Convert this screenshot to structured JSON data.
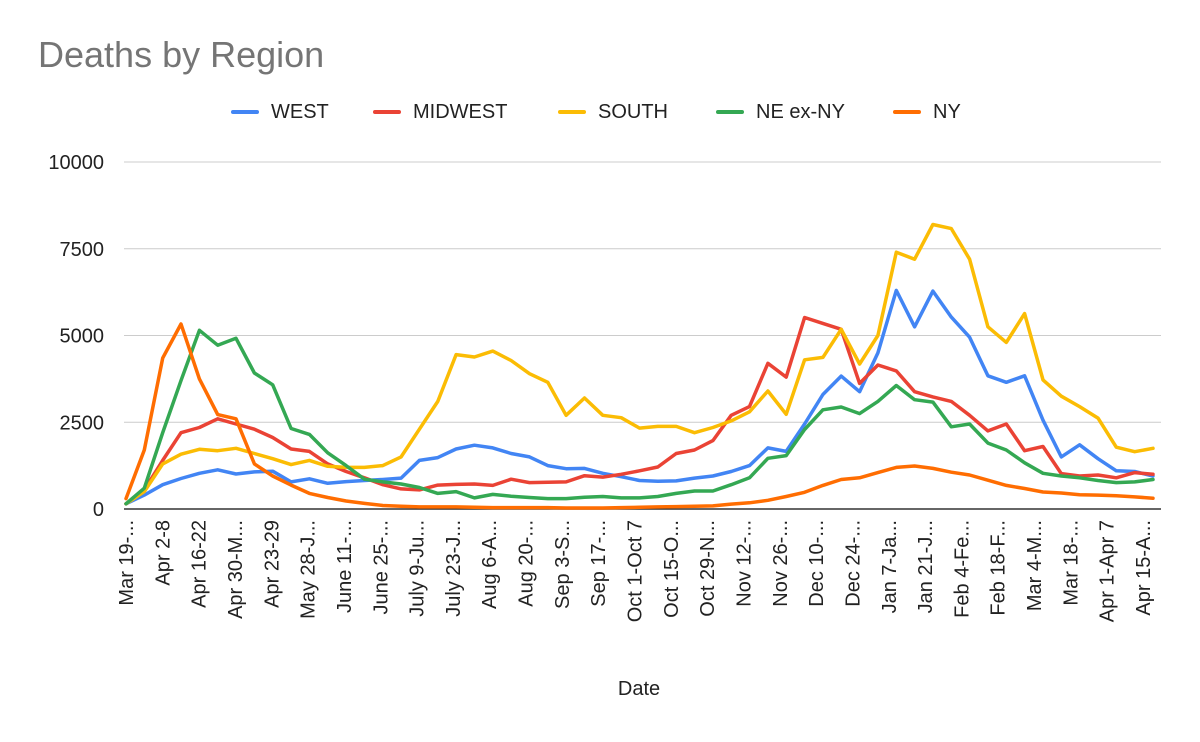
{
  "chart_data": {
    "type": "line",
    "title": "Deaths by Region",
    "xlabel": "Date",
    "ylabel": "",
    "ylim": [
      0,
      10000
    ],
    "yticks": [
      0,
      2500,
      5000,
      7500,
      10000
    ],
    "grid": true,
    "legend_position": "top",
    "x_tick_labels": [
      "Mar 19-...",
      "Apr 2-8",
      "Apr 16-22",
      "Apr 30-M...",
      "Apr 23-29",
      "May 28-J...",
      "June 11-...",
      "June 25-...",
      "July 9-Ju...",
      "July 23-J...",
      "Aug 6-A...",
      "Aug 20-...",
      "Sep 3-S...",
      "Sep 17-...",
      "Oct 1-Oct 7",
      "Oct 15-O...",
      "Oct 29-N...",
      "Nov 12-...",
      "Nov 26-...",
      "Dec 10-...",
      "Dec 24-...",
      "Jan 7-Ja...",
      "Jan 21-J...",
      "Feb 4-Fe...",
      "Feb 18-F...",
      "Mar 4-M...",
      "Mar 18-...",
      "Apr 1-Apr 7",
      "Apr 15-A..."
    ],
    "series": [
      {
        "name": "WEST",
        "color": "#4285f4",
        "values": [
          150,
          400,
          700,
          880,
          1030,
          1130,
          1010,
          1070,
          1090,
          780,
          870,
          740,
          790,
          820,
          850,
          890,
          1400,
          1480,
          1730,
          1840,
          1760,
          1600,
          1500,
          1250,
          1160,
          1170,
          1030,
          930,
          820,
          800,
          810,
          890,
          950,
          1080,
          1250,
          1760,
          1660,
          2450,
          3300,
          3830,
          3380,
          4500,
          6300,
          5250,
          6280,
          5530,
          4950,
          3840,
          3650,
          3840,
          2560,
          1500,
          1850,
          1450,
          1100,
          1080,
          950
        ]
      },
      {
        "name": "MIDWEST",
        "color": "#ea4335",
        "values": [
          150,
          550,
          1400,
          2200,
          2350,
          2600,
          2450,
          2300,
          2060,
          1730,
          1660,
          1300,
          1080,
          900,
          700,
          580,
          550,
          690,
          710,
          720,
          680,
          860,
          760,
          770,
          780,
          960,
          920,
          1000,
          1100,
          1210,
          1600,
          1700,
          1970,
          2700,
          2950,
          4200,
          3800,
          5520,
          5350,
          5180,
          3620,
          4150,
          3980,
          3380,
          3230,
          3100,
          2700,
          2250,
          2450,
          1680,
          1800,
          1020,
          950,
          980,
          900,
          1050,
          1000
        ]
      },
      {
        "name": "SOUTH",
        "color": "#fbbc04",
        "values": [
          150,
          500,
          1300,
          1580,
          1720,
          1680,
          1750,
          1600,
          1450,
          1280,
          1400,
          1230,
          1200,
          1200,
          1250,
          1500,
          2300,
          3100,
          4450,
          4380,
          4550,
          4280,
          3900,
          3650,
          2700,
          3200,
          2700,
          2630,
          2330,
          2380,
          2380,
          2200,
          2350,
          2540,
          2800,
          3400,
          2730,
          4300,
          4370,
          5180,
          4180,
          5000,
          7400,
          7200,
          8200,
          8080,
          7200,
          5250,
          4800,
          5630,
          3720,
          3250,
          2950,
          2620,
          1780,
          1650,
          1750
        ]
      },
      {
        "name": "NE ex-NY",
        "color": "#34a853",
        "values": [
          150,
          600,
          2200,
          3700,
          5150,
          4720,
          4920,
          3920,
          3580,
          2320,
          2150,
          1620,
          1250,
          860,
          780,
          720,
          620,
          450,
          500,
          320,
          420,
          370,
          330,
          300,
          300,
          340,
          360,
          320,
          320,
          360,
          450,
          520,
          520,
          700,
          900,
          1460,
          1540,
          2290,
          2860,
          2940,
          2750,
          3100,
          3560,
          3150,
          3080,
          2370,
          2450,
          1900,
          1700,
          1330,
          1030,
          950,
          900,
          820,
          760,
          780,
          850
        ]
      },
      {
        "name": "NY",
        "color": "#ff6d01",
        "values": [
          300,
          1700,
          4350,
          5330,
          3750,
          2720,
          2600,
          1300,
          950,
          690,
          450,
          330,
          230,
          160,
          100,
          80,
          60,
          60,
          60,
          50,
          40,
          40,
          40,
          40,
          30,
          30,
          30,
          40,
          50,
          60,
          70,
          80,
          90,
          140,
          180,
          250,
          360,
          480,
          680,
          850,
          900,
          1050,
          1200,
          1240,
          1170,
          1060,
          980,
          830,
          680,
          590,
          490,
          460,
          410,
          400,
          380,
          350,
          310
        ]
      }
    ]
  }
}
